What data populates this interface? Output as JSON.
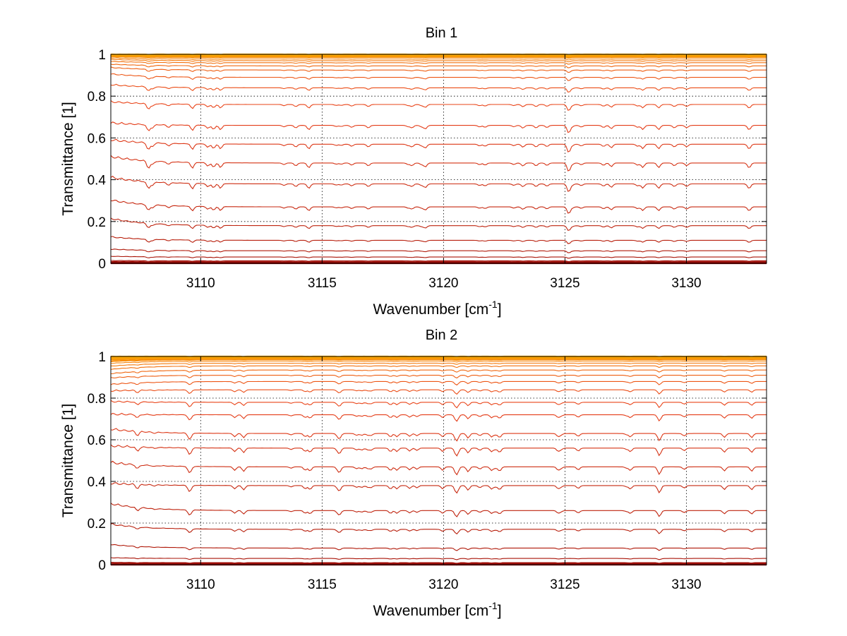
{
  "chart_data": [
    {
      "type": "line",
      "title": "Bin 1",
      "xlabel": "Wavenumber [cm",
      "xlabel_sup": "-1",
      "xlabel_close": "]",
      "ylabel": "Transmittance [1]",
      "xlim": [
        3106.3,
        3133.3
      ],
      "ylim": [
        0,
        1
      ],
      "xticks": [
        "3110",
        "3115",
        "3120",
        "3125",
        "3130"
      ],
      "xtick_values": [
        3110,
        3115,
        3120,
        3125,
        3130
      ],
      "yticks": [
        "0",
        "0.2",
        "0.4",
        "0.6",
        "0.8",
        "1"
      ],
      "ytick_values": [
        0,
        0.2,
        0.4,
        0.6,
        0.8,
        1
      ],
      "grid": true,
      "series_count": 26,
      "series_levels": [
        0.0,
        0.003,
        0.006,
        0.012,
        0.03,
        0.06,
        0.11,
        0.18,
        0.27,
        0.38,
        0.48,
        0.57,
        0.66,
        0.76,
        0.84,
        0.89,
        0.925,
        0.945,
        0.96,
        0.97,
        0.978,
        0.985,
        0.99,
        0.994,
        0.997,
        1.0
      ],
      "start_levels": [
        0.0,
        0.003,
        0.007,
        0.014,
        0.035,
        0.07,
        0.13,
        0.22,
        0.31,
        0.42,
        0.52,
        0.6,
        0.68,
        0.78,
        0.86,
        0.91,
        0.94,
        0.955,
        0.968,
        0.977,
        0.984,
        0.989,
        0.993,
        0.996,
        0.998,
        1.0
      ],
      "colors": {
        "low": "#8b0000",
        "mid": "#e8401a",
        "high": "#ffb000"
      }
    },
    {
      "type": "line",
      "title": "Bin 2",
      "xlabel": "Wavenumber [cm",
      "xlabel_sup": "-1",
      "xlabel_close": "]",
      "ylabel": "Transmittance [1]",
      "xlim": [
        3106.3,
        3133.3
      ],
      "ylim": [
        0,
        1
      ],
      "xticks": [
        "3110",
        "3115",
        "3120",
        "3125",
        "3130"
      ],
      "xtick_values": [
        3110,
        3115,
        3120,
        3125,
        3130
      ],
      "yticks": [
        "0",
        "0.2",
        "0.4",
        "0.6",
        "0.8",
        "1"
      ],
      "ytick_values": [
        0,
        0.2,
        0.4,
        0.6,
        0.8,
        1
      ],
      "grid": true,
      "series_count": 26,
      "series_levels": [
        0.0,
        0.002,
        0.005,
        0.01,
        0.03,
        0.08,
        0.17,
        0.26,
        0.38,
        0.47,
        0.56,
        0.63,
        0.72,
        0.78,
        0.84,
        0.88,
        0.91,
        0.935,
        0.955,
        0.968,
        0.978,
        0.986,
        0.991,
        0.995,
        0.998,
        1.0
      ],
      "start_levels": [
        0.0,
        0.002,
        0.006,
        0.012,
        0.035,
        0.1,
        0.2,
        0.3,
        0.4,
        0.5,
        0.58,
        0.66,
        0.73,
        0.79,
        0.84,
        0.87,
        0.9,
        0.92,
        0.94,
        0.955,
        0.968,
        0.978,
        0.986,
        0.992,
        0.996,
        1.0
      ],
      "colors": {
        "low": "#8b0000",
        "mid": "#e8401a",
        "high": "#ffb000"
      }
    }
  ]
}
